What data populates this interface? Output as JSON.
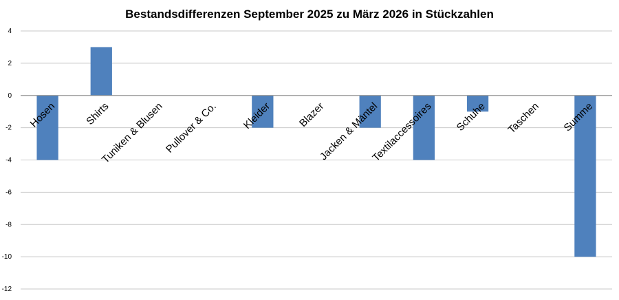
{
  "chart_data": {
    "type": "bar",
    "title": "Bestandsdifferenzen September 2025 zu März 2026 in Stückzahlen",
    "xlabel": "",
    "ylabel": "",
    "categories": [
      "Hosen",
      "Shirts",
      "Tuniken & Blusen",
      "Pullover & Co.",
      "Kleider",
      "Blazer",
      "Jacken & Mäntel",
      "Textilaccessoires",
      "Schuhe",
      "Taschen",
      "Summe"
    ],
    "values": [
      -4,
      3,
      0,
      0,
      -2,
      0,
      -2,
      -4,
      -1,
      0,
      -10
    ],
    "ylim": [
      -12,
      4
    ],
    "yticks": [
      4,
      2,
      0,
      -2,
      -4,
      -6,
      -8,
      -10,
      -12
    ],
    "grid": true,
    "legend": "none",
    "bar_color": "#4F81BD"
  }
}
